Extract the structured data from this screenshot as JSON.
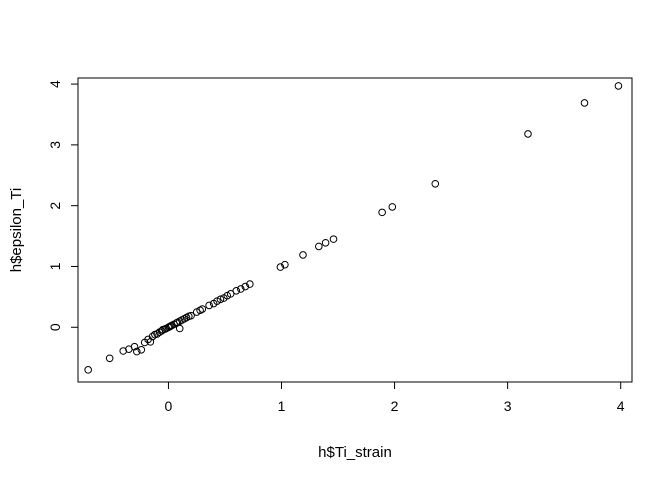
{
  "chart_data": {
    "type": "scatter",
    "xlabel": "h$Ti_strain",
    "ylabel": "h$epsilon_Ti",
    "xlim": [
      -0.8,
      4.1
    ],
    "ylim": [
      -0.9,
      4.1
    ],
    "xticks": [
      0,
      1,
      2,
      3,
      4
    ],
    "yticks": [
      0,
      1,
      2,
      3,
      4
    ],
    "x_tick_labels": [
      "0",
      "1",
      "2",
      "3",
      "4"
    ],
    "y_tick_labels": [
      "0",
      "1",
      "2",
      "3",
      "4"
    ],
    "grid": false,
    "marker": "open-circle",
    "color": "#000000",
    "series": [
      {
        "points": [
          [
            -0.71,
            -0.7
          ],
          [
            -0.52,
            -0.51
          ],
          [
            -0.4,
            -0.39
          ],
          [
            -0.35,
            -0.36
          ],
          [
            -0.3,
            -0.32
          ],
          [
            -0.28,
            -0.4
          ],
          [
            -0.24,
            -0.37
          ],
          [
            -0.21,
            -0.25
          ],
          [
            -0.18,
            -0.2
          ],
          [
            -0.16,
            -0.24
          ],
          [
            -0.14,
            -0.15
          ],
          [
            -0.12,
            -0.12
          ],
          [
            -0.1,
            -0.11
          ],
          [
            -0.08,
            -0.08
          ],
          [
            -0.06,
            -0.06
          ],
          [
            -0.05,
            -0.04
          ],
          [
            -0.03,
            -0.03
          ],
          [
            -0.02,
            -0.02
          ],
          [
            0.0,
            0.0
          ],
          [
            0.01,
            0.01
          ],
          [
            0.02,
            0.02
          ],
          [
            0.03,
            0.03
          ],
          [
            0.05,
            0.05
          ],
          [
            0.07,
            0.07
          ],
          [
            0.08,
            0.08
          ],
          [
            0.1,
            0.1
          ],
          [
            0.1,
            -0.02
          ],
          [
            0.12,
            0.12
          ],
          [
            0.14,
            0.14
          ],
          [
            0.16,
            0.16
          ],
          [
            0.18,
            0.18
          ],
          [
            0.2,
            0.19
          ],
          [
            0.25,
            0.25
          ],
          [
            0.28,
            0.28
          ],
          [
            0.3,
            0.3
          ],
          [
            0.36,
            0.36
          ],
          [
            0.4,
            0.39
          ],
          [
            0.43,
            0.43
          ],
          [
            0.46,
            0.46
          ],
          [
            0.49,
            0.48
          ],
          [
            0.52,
            0.52
          ],
          [
            0.55,
            0.55
          ],
          [
            0.6,
            0.6
          ],
          [
            0.64,
            0.63
          ],
          [
            0.68,
            0.67
          ],
          [
            0.72,
            0.71
          ],
          [
            0.99,
            0.99
          ],
          [
            1.03,
            1.03
          ],
          [
            1.19,
            1.19
          ],
          [
            1.33,
            1.33
          ],
          [
            1.39,
            1.39
          ],
          [
            1.46,
            1.45
          ],
          [
            1.89,
            1.89
          ],
          [
            1.98,
            1.98
          ],
          [
            2.36,
            2.36
          ],
          [
            3.18,
            3.18
          ],
          [
            3.68,
            3.69
          ],
          [
            3.98,
            3.97
          ]
        ]
      }
    ]
  }
}
